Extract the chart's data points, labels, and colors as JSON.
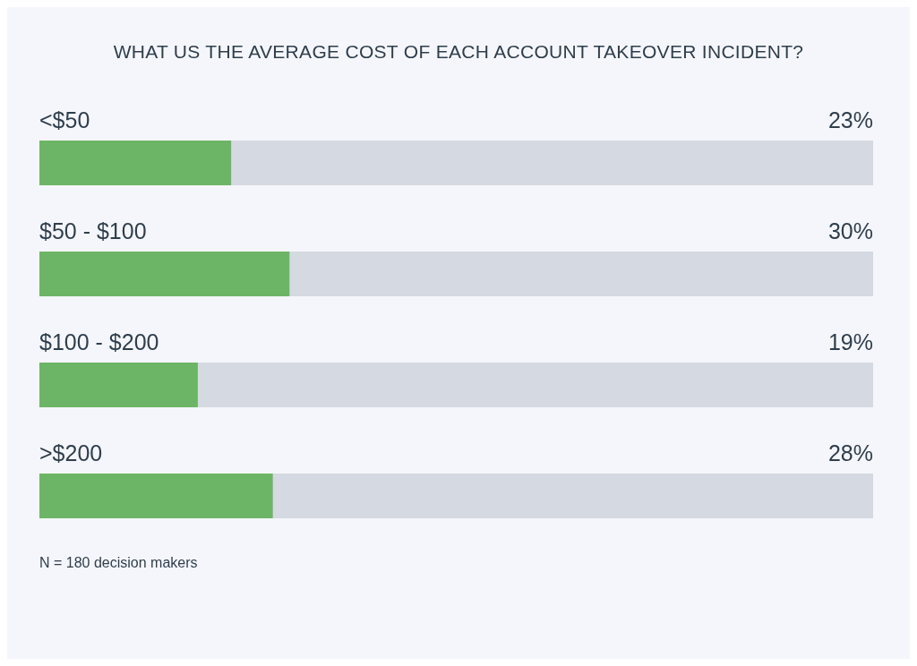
{
  "chart_data": {
    "type": "bar",
    "orientation": "horizontal",
    "title": "WHAT US THE AVERAGE COST OF EACH ACCOUNT TAKEOVER INCIDENT?",
    "categories": [
      "<$50",
      "$50 - $100",
      "$100 - $200",
      ">$200"
    ],
    "values": [
      23,
      30,
      19,
      28
    ],
    "value_labels": [
      "23%",
      "30%",
      "19%",
      "28%"
    ],
    "color": "#6db566",
    "xlim": [
      0,
      100
    ],
    "grid": false,
    "legend": false,
    "annotations": [
      "N = 180 decision makers"
    ]
  }
}
